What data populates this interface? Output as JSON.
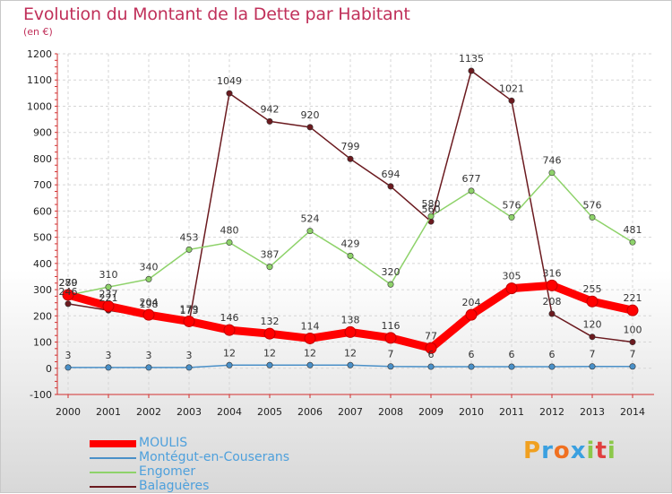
{
  "chart_data": {
    "type": "line",
    "title": "Evolution du Montant de la Dette par Habitant",
    "subtitle": "(en €)",
    "xlabel": "",
    "ylabel": "",
    "categories": [
      "2000",
      "2001",
      "2002",
      "2003",
      "2004",
      "2005",
      "2006",
      "2007",
      "2008",
      "2009",
      "2010",
      "2011",
      "2012",
      "2013",
      "2014"
    ],
    "ylim": [
      -100,
      1200
    ],
    "yticks": [
      -100,
      0,
      100,
      200,
      300,
      400,
      500,
      600,
      700,
      800,
      900,
      1000,
      1100,
      1200
    ],
    "grid": true,
    "legend_position": "bottom-left",
    "series": [
      {
        "name": "Balaguères",
        "color": "#6b1a1f",
        "values": [
          246,
          221,
          198,
          173,
          1049,
          942,
          920,
          799,
          694,
          560,
          1135,
          1021,
          208,
          120,
          100
        ]
      },
      {
        "name": "Engomer",
        "color": "#8ed26a",
        "values": [
          279,
          310,
          340,
          453,
          480,
          387,
          524,
          429,
          320,
          580,
          677,
          576,
          746,
          576,
          481
        ]
      },
      {
        "name": "Montégut-en-Couserans",
        "color": "#4a90c8",
        "values": [
          3,
          3,
          3,
          3,
          12,
          12,
          12,
          12,
          7,
          6,
          6,
          6,
          6,
          7,
          7
        ]
      },
      {
        "name": "MOULIS",
        "color": "#ff0000",
        "values": [
          280,
          237,
          204,
          179,
          146,
          132,
          114,
          138,
          116,
          77,
          204,
          305,
          316,
          255,
          221
        ]
      }
    ]
  },
  "legend": {
    "items": [
      {
        "name": "MOULIS",
        "color": "#ff0000"
      },
      {
        "name": "Montégut-en-Couserans",
        "color": "#4a90c8"
      },
      {
        "name": "Engomer",
        "color": "#8ed26a"
      },
      {
        "name": "Balaguères",
        "color": "#6b1a1f"
      }
    ]
  },
  "logo": {
    "text": "Proxiti"
  }
}
